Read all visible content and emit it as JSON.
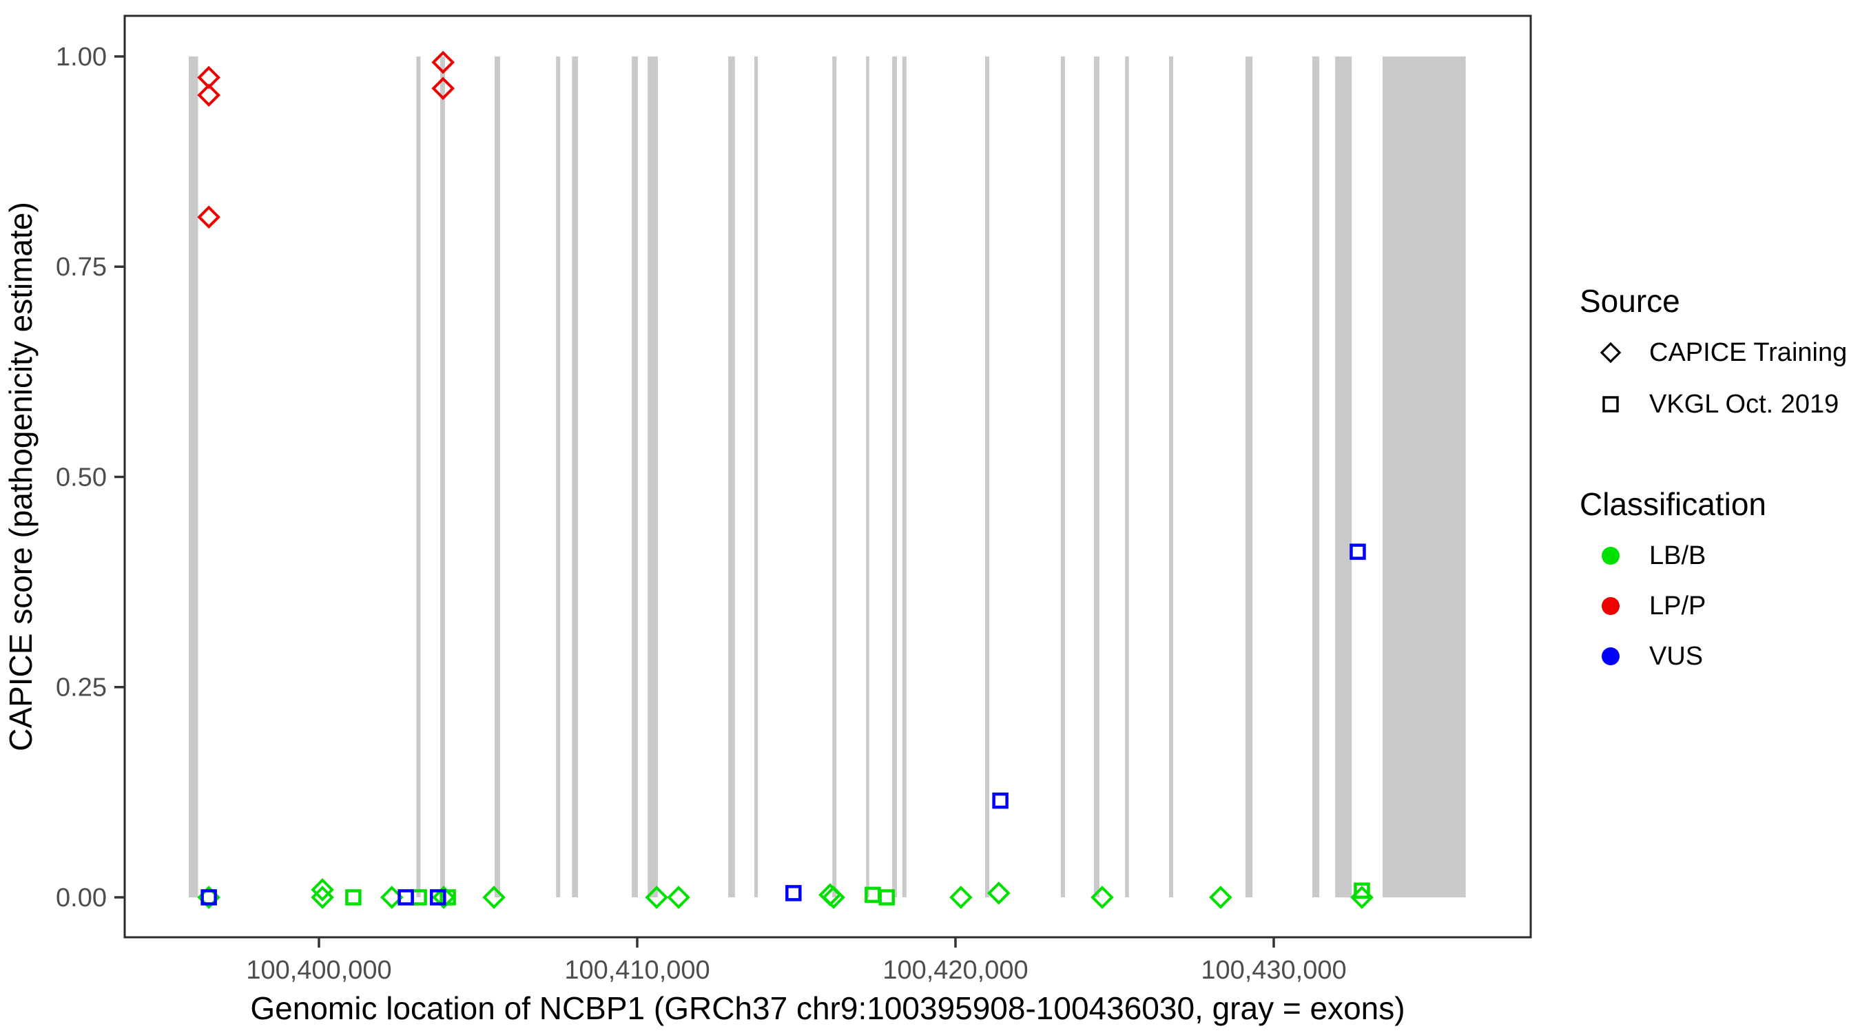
{
  "chart_data": {
    "type": "scatter",
    "title": "",
    "xlabel": "Genomic location of NCBP1 (GRCh37 chr9:100395908-100436030, gray = exons)",
    "ylabel": "CAPICE score (pathogenicity estimate)",
    "xlim": [
      100393896,
      100438074
    ],
    "ylim": [
      -0.0475,
      1.0483
    ],
    "x_ticks": [
      {
        "value": 100400000,
        "label": "100,400,000"
      },
      {
        "value": 100410000,
        "label": "100,410,000"
      },
      {
        "value": 100420000,
        "label": "100,420,000"
      },
      {
        "value": 100430000,
        "label": "100,430,000"
      }
    ],
    "y_ticks": [
      {
        "value": 0.0,
        "label": "0.00"
      },
      {
        "value": 0.25,
        "label": "0.25"
      },
      {
        "value": 0.5,
        "label": "0.50"
      },
      {
        "value": 0.75,
        "label": "0.75"
      },
      {
        "value": 1.0,
        "label": "1.00"
      }
    ],
    "grid": "off",
    "exon_band_score_range": [
      0,
      1
    ],
    "exons": [
      [
        100395908,
        100396200
      ],
      [
        100403060,
        100403190
      ],
      [
        100403810,
        100403960
      ],
      [
        100405520,
        100405690
      ],
      [
        100407450,
        100407580
      ],
      [
        100407950,
        100408140
      ],
      [
        100409830,
        100410020
      ],
      [
        100410330,
        100410650
      ],
      [
        100412860,
        100413070
      ],
      [
        100413680,
        100413790
      ],
      [
        100416130,
        100416260
      ],
      [
        100417190,
        100417290
      ],
      [
        100418010,
        100418160
      ],
      [
        100418330,
        100418460
      ],
      [
        100420930,
        100421060
      ],
      [
        100423310,
        100423440
      ],
      [
        100424350,
        100424520
      ],
      [
        100425330,
        100425450
      ],
      [
        100426710,
        100426840
      ],
      [
        100429110,
        100429330
      ],
      [
        100431210,
        100431430
      ],
      [
        100431930,
        100432450
      ],
      [
        100433420,
        100436030
      ]
    ],
    "points": [
      {
        "x": 100396540,
        "y": 0.0,
        "source": "CAPICE Training",
        "classification": "LB/B"
      },
      {
        "x": 100400110,
        "y": 0.009,
        "source": "CAPICE Training",
        "classification": "LB/B"
      },
      {
        "x": 100400110,
        "y": 0.0,
        "source": "CAPICE Training",
        "classification": "LB/B"
      },
      {
        "x": 100402290,
        "y": 0.0,
        "source": "CAPICE Training",
        "classification": "LB/B"
      },
      {
        "x": 100403920,
        "y": 0.0,
        "source": "CAPICE Training",
        "classification": "LB/B"
      },
      {
        "x": 100405500,
        "y": 0.0,
        "source": "CAPICE Training",
        "classification": "LB/B"
      },
      {
        "x": 100410610,
        "y": 0.0,
        "source": "CAPICE Training",
        "classification": "LB/B"
      },
      {
        "x": 100411300,
        "y": 0.0,
        "source": "CAPICE Training",
        "classification": "LB/B"
      },
      {
        "x": 100416060,
        "y": 0.003,
        "source": "CAPICE Training",
        "classification": "LB/B"
      },
      {
        "x": 100416170,
        "y": 0.0,
        "source": "CAPICE Training",
        "classification": "LB/B"
      },
      {
        "x": 100420170,
        "y": 0.0,
        "source": "CAPICE Training",
        "classification": "LB/B"
      },
      {
        "x": 100421360,
        "y": 0.005,
        "source": "CAPICE Training",
        "classification": "LB/B"
      },
      {
        "x": 100424610,
        "y": 0.0,
        "source": "CAPICE Training",
        "classification": "LB/B"
      },
      {
        "x": 100428330,
        "y": 0.0,
        "source": "CAPICE Training",
        "classification": "LB/B"
      },
      {
        "x": 100432770,
        "y": 0.0,
        "source": "CAPICE Training",
        "classification": "LB/B"
      },
      {
        "x": 100401080,
        "y": 0.0,
        "source": "VKGL Oct. 2019",
        "classification": "LB/B"
      },
      {
        "x": 100403140,
        "y": 0.0,
        "source": "VKGL Oct. 2019",
        "classification": "LB/B"
      },
      {
        "x": 100404050,
        "y": 0.0,
        "source": "VKGL Oct. 2019",
        "classification": "LB/B"
      },
      {
        "x": 100417400,
        "y": 0.003,
        "source": "VKGL Oct. 2019",
        "classification": "LB/B"
      },
      {
        "x": 100417840,
        "y": 0.0,
        "source": "VKGL Oct. 2019",
        "classification": "LB/B"
      },
      {
        "x": 100432770,
        "y": 0.008,
        "source": "VKGL Oct. 2019",
        "classification": "LB/B"
      },
      {
        "x": 100396540,
        "y": 0.0,
        "source": "VKGL Oct. 2019",
        "classification": "VUS"
      },
      {
        "x": 100402730,
        "y": 0.0,
        "source": "VKGL Oct. 2019",
        "classification": "VUS"
      },
      {
        "x": 100403740,
        "y": 0.0,
        "source": "VKGL Oct. 2019",
        "classification": "VUS"
      },
      {
        "x": 100414910,
        "y": 0.005,
        "source": "VKGL Oct. 2019",
        "classification": "VUS"
      },
      {
        "x": 100421410,
        "y": 0.115,
        "source": "VKGL Oct. 2019",
        "classification": "VUS"
      },
      {
        "x": 100432640,
        "y": 0.411,
        "source": "VKGL Oct. 2019",
        "classification": "VUS"
      },
      {
        "x": 100396540,
        "y": 0.975,
        "source": "CAPICE Training",
        "classification": "LP/P"
      },
      {
        "x": 100396540,
        "y": 0.954,
        "source": "CAPICE Training",
        "classification": "LP/P"
      },
      {
        "x": 100396540,
        "y": 0.809,
        "source": "CAPICE Training",
        "classification": "LP/P"
      },
      {
        "x": 100403900,
        "y": 0.993,
        "source": "CAPICE Training",
        "classification": "LP/P"
      },
      {
        "x": 100403900,
        "y": 0.962,
        "source": "CAPICE Training",
        "classification": "LP/P"
      }
    ],
    "legend": {
      "position": "right",
      "source": {
        "title": "Source",
        "items": [
          {
            "label": "CAPICE Training",
            "shape": "diamond"
          },
          {
            "label": "VKGL Oct. 2019",
            "shape": "square"
          }
        ]
      },
      "classification": {
        "title": "Classification",
        "items": [
          {
            "label": "LB/B",
            "color": "#00E000"
          },
          {
            "label": "LP/P",
            "color": "#EE0000"
          },
          {
            "label": "VUS",
            "color": "#0000FF"
          }
        ]
      }
    },
    "colors": {
      "LB/B": "#00E000",
      "LP/P": "#EE0000",
      "VUS": "#0000FF",
      "exon": "#C9C9C9",
      "axis_text": "#4D4D4D",
      "tick_mark": "#333333",
      "panel_border": "#2B2B2B"
    }
  }
}
